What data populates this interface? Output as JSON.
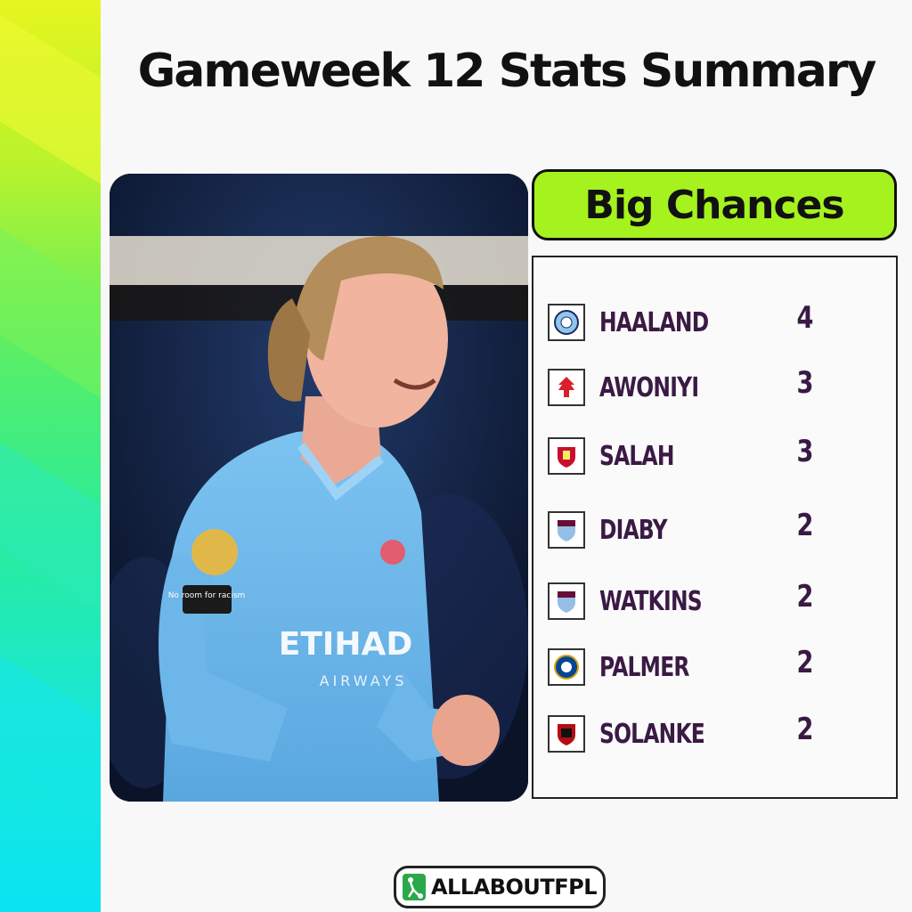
{
  "title": "Gameweek 12 Stats Summary",
  "category": "Big Chances",
  "brand": "ALLABOUTFPL",
  "photo_text": {
    "sponsor": "ETIHAD",
    "sponsor_sub": "AIRWAYS",
    "sleeve": "No room for racism"
  },
  "players": [
    {
      "name": "HAALAND",
      "value": "4",
      "crest": "man-city-crest"
    },
    {
      "name": "AWONIYI",
      "value": "3",
      "crest": "nottingham-forest-crest"
    },
    {
      "name": "SALAH",
      "value": "3",
      "crest": "liverpool-crest"
    },
    {
      "name": "DIABY",
      "value": "2",
      "crest": "aston-villa-crest"
    },
    {
      "name": "WATKINS",
      "value": "2",
      "crest": "aston-villa-crest"
    },
    {
      "name": "PALMER",
      "value": "2",
      "crest": "chelsea-crest"
    },
    {
      "name": "SOLANKE",
      "value": "2",
      "crest": "bournemouth-crest"
    }
  ],
  "colors": {
    "badge_bg": "#a6f21e",
    "player_text": "#3a1a44",
    "kit_blue": "#6bb6ec",
    "photo_bg": "#0e1a3a"
  }
}
